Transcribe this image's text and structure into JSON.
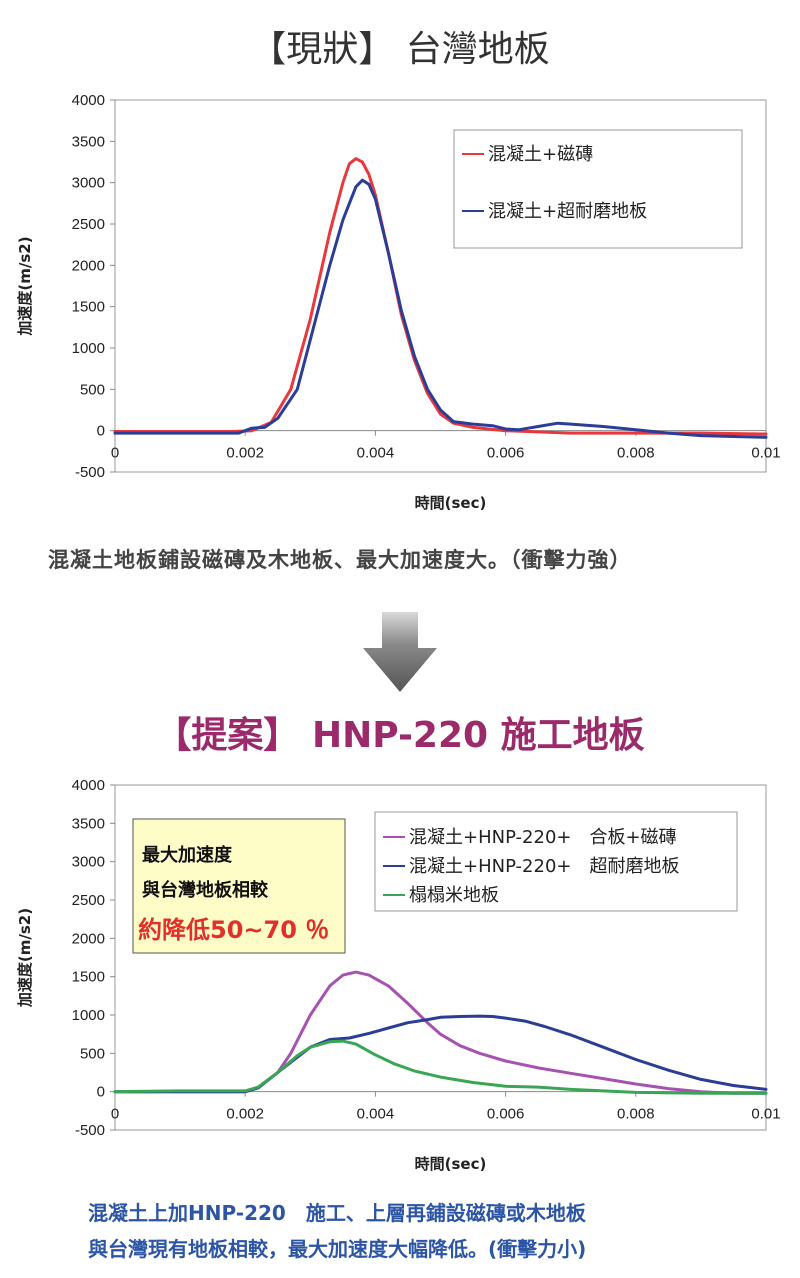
{
  "top": {
    "title": "【現狀】 台灣地板",
    "caption": "混凝土地板鋪設磁磚及木地板、最大加速度大。（衝擊力強）"
  },
  "bottom": {
    "title": "【提案】 HNP-220 施工地板",
    "caption_line1": "混凝土上加HNP-220　施工、上層再鋪設磁磚或木地板",
    "caption_line2": "與台灣現有地板相較，最大加速度大幅降低。(衝擊力小)",
    "callout": {
      "line1": "最大加速度",
      "line2": "與台灣地板相較",
      "line3": "約降低50~70 ％"
    }
  },
  "arrow": {
    "icon": "down-arrow-icon",
    "color": "#555555"
  },
  "chart_data": [
    {
      "type": "line",
      "title": "",
      "xlabel": "時間(sec)",
      "ylabel": "加速度(m/s2)",
      "xlim": [
        0,
        0.01
      ],
      "ylim": [
        -500,
        4000
      ],
      "xticks": [
        0,
        0.002,
        0.004,
        0.006,
        0.008,
        0.01
      ],
      "xtick_labels": [
        "0",
        "0.002",
        "0.004",
        "0.006",
        "0.008",
        "0.01"
      ],
      "yticks": [
        -500,
        0,
        500,
        1000,
        1500,
        2000,
        2500,
        3000,
        3500,
        4000
      ],
      "ytick_labels": [
        "-500",
        "0",
        "500",
        "1000",
        "1500",
        "2000",
        "2500",
        "3000",
        "3500",
        "4000"
      ],
      "grid": false,
      "legend_position": "top-right",
      "series": [
        {
          "name": "混凝土+磁磚",
          "color": "#e8383d",
          "x": [
            -0.0001,
            0.0018,
            0.0021,
            0.0024,
            0.0027,
            0.003,
            0.0033,
            0.0035,
            0.0036,
            0.0037,
            0.0038,
            0.0039,
            0.004,
            0.0042,
            0.0044,
            0.0046,
            0.0048,
            0.005,
            0.0052,
            0.0055,
            0.006,
            0.007,
            0.008,
            0.009,
            0.01
          ],
          "y": [
            -10,
            -10,
            0,
            100,
            500,
            1350,
            2400,
            3000,
            3230,
            3290,
            3250,
            3100,
            2850,
            2150,
            1400,
            850,
            450,
            200,
            90,
            40,
            0,
            -30,
            -30,
            -30,
            -40
          ]
        },
        {
          "name": "混凝土+超耐磨地板",
          "color": "#2b3d96",
          "x": [
            -0.0001,
            0.0019,
            0.0021,
            0.0023,
            0.0025,
            0.0028,
            0.003,
            0.0033,
            0.0035,
            0.0037,
            0.0038,
            0.0039,
            0.004,
            0.0042,
            0.0044,
            0.0046,
            0.0048,
            0.005,
            0.0052,
            0.0055,
            0.0058,
            0.006,
            0.0062,
            0.0065,
            0.0068,
            0.007,
            0.0075,
            0.008,
            0.0085,
            0.009,
            0.0095,
            0.01
          ],
          "y": [
            -30,
            -30,
            30,
            40,
            150,
            500,
            1100,
            2000,
            2550,
            2950,
            3030,
            2980,
            2800,
            2150,
            1450,
            900,
            500,
            250,
            110,
            80,
            60,
            20,
            10,
            50,
            90,
            80,
            50,
            10,
            -30,
            -60,
            -70,
            -80
          ]
        }
      ]
    },
    {
      "type": "line",
      "title": "",
      "xlabel": "時間(sec)",
      "ylabel": "加速度(m/s2)",
      "xlim": [
        0,
        0.01
      ],
      "ylim": [
        -500,
        4000
      ],
      "xticks": [
        0,
        0.002,
        0.004,
        0.006,
        0.008,
        0.01
      ],
      "xtick_labels": [
        "0",
        "0.002",
        "0.004",
        "0.006",
        "0.008",
        "0.01"
      ],
      "yticks": [
        -500,
        0,
        500,
        1000,
        1500,
        2000,
        2500,
        3000,
        3500,
        4000
      ],
      "ytick_labels": [
        "-500",
        "0",
        "500",
        "1000",
        "1500",
        "2000",
        "2500",
        "3000",
        "3500",
        "4000"
      ],
      "grid": false,
      "legend_position": "top-right",
      "series": [
        {
          "name": "混凝土+HNP-220+　合板+磁磚",
          "color": "#a652b0",
          "x": [
            -0.0001,
            0.002,
            0.0022,
            0.0025,
            0.0027,
            0.003,
            0.0033,
            0.0035,
            0.0037,
            0.0039,
            0.0042,
            0.0045,
            0.0048,
            0.005,
            0.0053,
            0.0056,
            0.006,
            0.0065,
            0.007,
            0.0075,
            0.008,
            0.0085,
            0.009,
            0.0095,
            0.01
          ],
          "y": [
            0,
            0,
            50,
            250,
            500,
            1000,
            1380,
            1520,
            1560,
            1520,
            1380,
            1150,
            900,
            750,
            600,
            500,
            400,
            310,
            240,
            170,
            100,
            40,
            0,
            -20,
            -20
          ]
        },
        {
          "name": "混凝土+HNP-220+　超耐磨地板",
          "color": "#2b3d96",
          "x": [
            -0.0001,
            0.002,
            0.0022,
            0.0025,
            0.0028,
            0.003,
            0.0033,
            0.0036,
            0.0039,
            0.0042,
            0.0045,
            0.0048,
            0.005,
            0.0053,
            0.0056,
            0.0058,
            0.006,
            0.0063,
            0.0066,
            0.007,
            0.0075,
            0.008,
            0.0085,
            0.009,
            0.0095,
            0.01
          ],
          "y": [
            0,
            0,
            50,
            250,
            450,
            580,
            680,
            700,
            760,
            830,
            900,
            940,
            970,
            980,
            985,
            980,
            960,
            920,
            850,
            740,
            580,
            420,
            280,
            160,
            80,
            30
          ]
        },
        {
          "name": "榻榻米地板",
          "color": "#3aa655",
          "x": [
            -0.0001,
            0.001,
            0.002,
            0.0022,
            0.0025,
            0.0028,
            0.003,
            0.0033,
            0.0035,
            0.0037,
            0.004,
            0.0043,
            0.0046,
            0.005,
            0.0055,
            0.006,
            0.0065,
            0.007,
            0.0075,
            0.008,
            0.009,
            0.01
          ],
          "y": [
            0,
            10,
            10,
            60,
            250,
            470,
            580,
            650,
            660,
            620,
            480,
            360,
            270,
            190,
            120,
            70,
            60,
            30,
            10,
            -10,
            -20,
            -20
          ]
        }
      ]
    }
  ]
}
